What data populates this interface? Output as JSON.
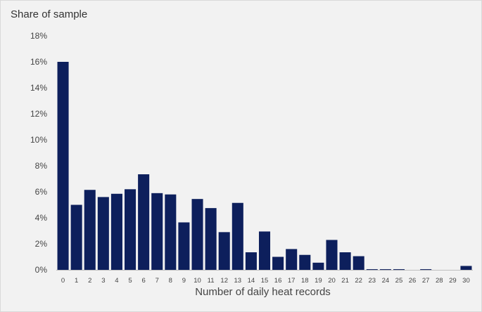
{
  "chart_data": {
    "type": "bar",
    "title": "",
    "ylabel": "Share of sample",
    "xlabel": "Number of daily heat records",
    "ylim": [
      0,
      18
    ],
    "yticks": [
      "0%",
      "2%",
      "4%",
      "6%",
      "8%",
      "10%",
      "12%",
      "14%",
      "16%",
      "18%"
    ],
    "grid": false,
    "categories": [
      "0",
      "1",
      "2",
      "3",
      "4",
      "5",
      "6",
      "7",
      "8",
      "9",
      "10",
      "11",
      "12",
      "13",
      "14",
      "15",
      "16",
      "17",
      "18",
      "19",
      "20",
      "21",
      "22",
      "23",
      "24",
      "25",
      "26",
      "27",
      "28",
      "29",
      "30"
    ],
    "values": [
      16.0,
      5.0,
      6.15,
      5.6,
      5.85,
      6.2,
      7.35,
      5.9,
      5.8,
      3.65,
      5.45,
      4.75,
      2.9,
      5.15,
      1.35,
      2.95,
      1.0,
      1.6,
      1.15,
      0.55,
      2.3,
      1.35,
      1.05,
      0.05,
      0.05,
      0.05,
      0.0,
      0.05,
      0.0,
      0.0,
      0.3
    ],
    "colors": {
      "bar": "#0d1f5c",
      "background": "#f2f2f2"
    }
  }
}
